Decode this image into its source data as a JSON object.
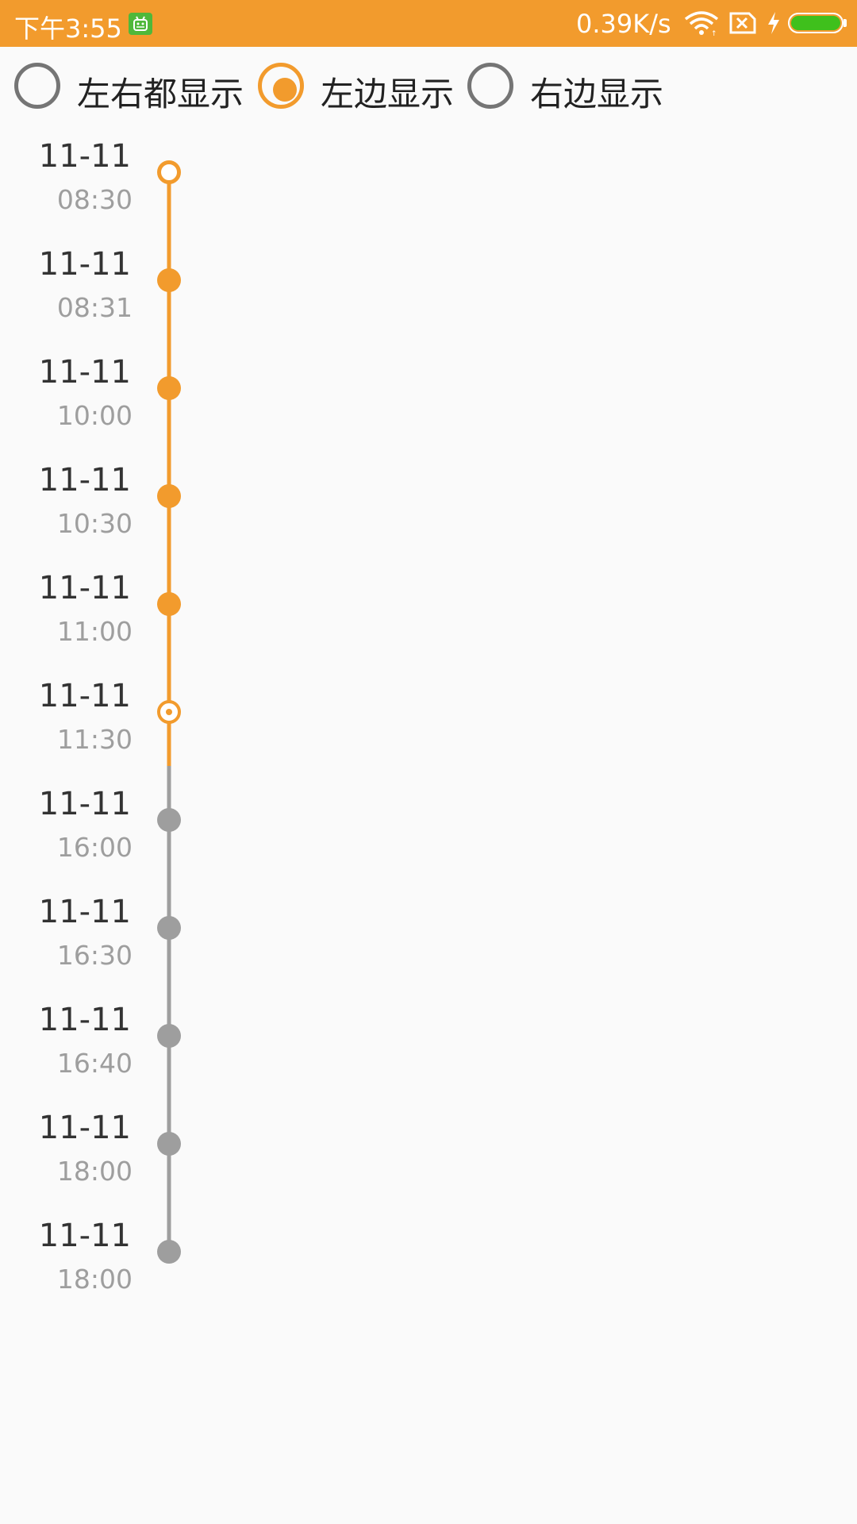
{
  "status_bar": {
    "time": "下午3:55",
    "net_speed": "0.39K/s",
    "battery_level": 1.0
  },
  "radio_options": [
    {
      "label": "左右都显示",
      "checked": false
    },
    {
      "label": "左边显示",
      "checked": true
    },
    {
      "label": "右边显示",
      "checked": false
    }
  ],
  "colors": {
    "accent": "#f29b2d",
    "inactive": "#9e9e9e",
    "status_bar": "#f29b2d",
    "battery_fill": "#3fc01c"
  },
  "timeline": {
    "items": [
      {
        "date": "11-11",
        "time": "08:30",
        "state": "start"
      },
      {
        "date": "11-11",
        "time": "08:31",
        "state": "done"
      },
      {
        "date": "11-11",
        "time": "10:00",
        "state": "done"
      },
      {
        "date": "11-11",
        "time": "10:30",
        "state": "done"
      },
      {
        "date": "11-11",
        "time": "11:00",
        "state": "done"
      },
      {
        "date": "11-11",
        "time": "11:30",
        "state": "current"
      },
      {
        "date": "11-11",
        "time": "16:00",
        "state": "pending"
      },
      {
        "date": "11-11",
        "time": "16:30",
        "state": "pending"
      },
      {
        "date": "11-11",
        "time": "16:40",
        "state": "pending"
      },
      {
        "date": "11-11",
        "time": "18:00",
        "state": "pending"
      },
      {
        "date": "11-11",
        "time": "18:00",
        "state": "pending"
      }
    ]
  }
}
